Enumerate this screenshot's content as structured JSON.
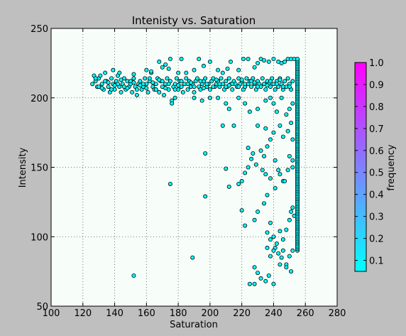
{
  "chart_data": {
    "type": "scatter",
    "title": "Intenisty vs. Saturation",
    "xlabel": "Saturation",
    "ylabel": "Intensity",
    "xlim": [
      100,
      280
    ],
    "ylim": [
      50,
      250
    ],
    "xticks": [
      "100",
      "120",
      "140",
      "160",
      "180",
      "200",
      "220",
      "240",
      "260",
      "280"
    ],
    "yticks": [
      "50",
      "100",
      "150",
      "200",
      "250"
    ],
    "grid": true,
    "marker_color": "#00ffff",
    "marker_edge": "#000000",
    "background": "#f7fdf9",
    "colorbar": {
      "label": "frequency",
      "ticks": [
        "0.1",
        "0.2",
        "0.3",
        "0.4",
        "0.5",
        "0.6",
        "0.7",
        "0.8",
        "0.9",
        "1.0"
      ],
      "range": [
        0.05,
        1.0
      ],
      "colors": [
        "#00ffff",
        "#ff00ff"
      ]
    },
    "points": [
      [
        126,
        210
      ],
      [
        127,
        216
      ],
      [
        128,
        212
      ],
      [
        129,
        208
      ],
      [
        130,
        214
      ],
      [
        131,
        216
      ],
      [
        132,
        210
      ],
      [
        133,
        206
      ],
      [
        134,
        218
      ],
      [
        135,
        212
      ],
      [
        136,
        208
      ],
      [
        137,
        204
      ],
      [
        138,
        214
      ],
      [
        139,
        210
      ],
      [
        140,
        206
      ],
      [
        141,
        212
      ],
      [
        142,
        216
      ],
      [
        143,
        208
      ],
      [
        144,
        204
      ],
      [
        145,
        210
      ],
      [
        146,
        214
      ],
      [
        147,
        206
      ],
      [
        148,
        212
      ],
      [
        149,
        208
      ],
      [
        150,
        210
      ],
      [
        151,
        204
      ],
      [
        152,
        214
      ],
      [
        153,
        208
      ],
      [
        154,
        202
      ],
      [
        155,
        210
      ],
      [
        156,
        212
      ],
      [
        157,
        206
      ],
      [
        158,
        208
      ],
      [
        159,
        214
      ],
      [
        160,
        210
      ],
      [
        161,
        204
      ],
      [
        162,
        212
      ],
      [
        163,
        218
      ],
      [
        164,
        208
      ],
      [
        165,
        206
      ],
      [
        166,
        210
      ],
      [
        167,
        214
      ],
      [
        168,
        204
      ],
      [
        169,
        212
      ],
      [
        170,
        208
      ],
      [
        171,
        202
      ],
      [
        172,
        210
      ],
      [
        173,
        214
      ],
      [
        174,
        206
      ],
      [
        175,
        212
      ],
      [
        176,
        198
      ],
      [
        177,
        208
      ],
      [
        178,
        210
      ],
      [
        179,
        214
      ],
      [
        180,
        206
      ],
      [
        181,
        212
      ],
      [
        182,
        208
      ],
      [
        183,
        204
      ],
      [
        184,
        210
      ],
      [
        185,
        214
      ],
      [
        186,
        206
      ],
      [
        187,
        212
      ],
      [
        188,
        208
      ],
      [
        189,
        210
      ],
      [
        190,
        204
      ],
      [
        191,
        212
      ],
      [
        192,
        214
      ],
      [
        193,
        208
      ],
      [
        194,
        206
      ],
      [
        195,
        210
      ],
      [
        196,
        212
      ],
      [
        197,
        214
      ],
      [
        198,
        208
      ],
      [
        199,
        210
      ],
      [
        200,
        206
      ],
      [
        201,
        212
      ],
      [
        202,
        214
      ],
      [
        203,
        208
      ],
      [
        204,
        210
      ],
      [
        205,
        212
      ],
      [
        206,
        208
      ],
      [
        207,
        214
      ],
      [
        208,
        210
      ],
      [
        209,
        206
      ],
      [
        210,
        212
      ],
      [
        211,
        208
      ],
      [
        212,
        214
      ],
      [
        213,
        210
      ],
      [
        214,
        206
      ],
      [
        215,
        212
      ],
      [
        216,
        210
      ],
      [
        217,
        208
      ],
      [
        218,
        214
      ],
      [
        219,
        210
      ],
      [
        220,
        212
      ],
      [
        221,
        206
      ],
      [
        222,
        208
      ],
      [
        223,
        214
      ],
      [
        224,
        210
      ],
      [
        225,
        212
      ],
      [
        226,
        208
      ],
      [
        227,
        214
      ],
      [
        228,
        210
      ],
      [
        229,
        206
      ],
      [
        230,
        212
      ],
      [
        231,
        210
      ],
      [
        232,
        208
      ],
      [
        233,
        214
      ],
      [
        234,
        210
      ],
      [
        235,
        206
      ],
      [
        236,
        212
      ],
      [
        237,
        210
      ],
      [
        238,
        208
      ],
      [
        239,
        214
      ],
      [
        240,
        210
      ],
      [
        241,
        206
      ],
      [
        242,
        212
      ],
      [
        243,
        208
      ],
      [
        244,
        214
      ],
      [
        245,
        210
      ],
      [
        246,
        206
      ],
      [
        247,
        212
      ],
      [
        248,
        208
      ],
      [
        249,
        214
      ],
      [
        250,
        210
      ],
      [
        251,
        206
      ],
      [
        252,
        212
      ],
      [
        130,
        208
      ],
      [
        134,
        212
      ],
      [
        138,
        206
      ],
      [
        142,
        210
      ],
      [
        146,
        208
      ],
      [
        150,
        212
      ],
      [
        154,
        206
      ],
      [
        158,
        210
      ],
      [
        162,
        214
      ],
      [
        166,
        206
      ],
      [
        170,
        212
      ],
      [
        174,
        210
      ],
      [
        178,
        206
      ],
      [
        182,
        212
      ],
      [
        186,
        210
      ],
      [
        190,
        208
      ],
      [
        194,
        212
      ],
      [
        198,
        210
      ],
      [
        202,
        208
      ],
      [
        206,
        210
      ],
      [
        210,
        208
      ],
      [
        214,
        210
      ],
      [
        218,
        208
      ],
      [
        222,
        210
      ],
      [
        226,
        212
      ],
      [
        230,
        208
      ],
      [
        234,
        210
      ],
      [
        238,
        212
      ],
      [
        242,
        210
      ],
      [
        246,
        208
      ],
      [
        128,
        214
      ],
      [
        132,
        207
      ],
      [
        136,
        211
      ],
      [
        140,
        209
      ],
      [
        144,
        213
      ],
      [
        148,
        207
      ],
      [
        152,
        211
      ],
      [
        156,
        209
      ],
      [
        160,
        207
      ],
      [
        164,
        211
      ],
      [
        168,
        213
      ],
      [
        172,
        207
      ],
      [
        180,
        209
      ],
      [
        188,
        211
      ],
      [
        196,
        207
      ],
      [
        204,
        213
      ],
      [
        212,
        209
      ],
      [
        220,
        213
      ],
      [
        228,
        211
      ],
      [
        236,
        209
      ],
      [
        244,
        213
      ],
      [
        250,
        208
      ],
      [
        139,
        220
      ],
      [
        143,
        218
      ],
      [
        152,
        217
      ],
      [
        160,
        220
      ],
      [
        163,
        219
      ],
      [
        168,
        226
      ],
      [
        170,
        222
      ],
      [
        172,
        224
      ],
      [
        174,
        221
      ],
      [
        175,
        228
      ],
      [
        180,
        218
      ],
      [
        182,
        228
      ],
      [
        185,
        218
      ],
      [
        190,
        220
      ],
      [
        193,
        228
      ],
      [
        196,
        223
      ],
      [
        200,
        226
      ],
      [
        205,
        220
      ],
      [
        208,
        218
      ],
      [
        211,
        221
      ],
      [
        213,
        226
      ],
      [
        218,
        220
      ],
      [
        221,
        228
      ],
      [
        224,
        228
      ],
      [
        228,
        222
      ],
      [
        230,
        225
      ],
      [
        232,
        228
      ],
      [
        234,
        227
      ],
      [
        237,
        226
      ],
      [
        240,
        228
      ],
      [
        243,
        226
      ],
      [
        245,
        225
      ],
      [
        247,
        226
      ],
      [
        249,
        228
      ],
      [
        251,
        228
      ],
      [
        253,
        228
      ],
      [
        176,
        196
      ],
      [
        178,
        200
      ],
      [
        190,
        200
      ],
      [
        195,
        198
      ],
      [
        200,
        200
      ],
      [
        205,
        200
      ],
      [
        210,
        196
      ],
      [
        212,
        192
      ],
      [
        218,
        200
      ],
      [
        222,
        196
      ],
      [
        225,
        190
      ],
      [
        230,
        192
      ],
      [
        235,
        198
      ],
      [
        238,
        200
      ],
      [
        240,
        196
      ],
      [
        242,
        190
      ],
      [
        245,
        200
      ],
      [
        248,
        188
      ],
      [
        250,
        192
      ],
      [
        252,
        196
      ],
      [
        208,
        180
      ],
      [
        230,
        180
      ],
      [
        235,
        178
      ],
      [
        238,
        170
      ],
      [
        240,
        175
      ],
      [
        244,
        180
      ],
      [
        246,
        172
      ],
      [
        249,
        176
      ],
      [
        251,
        182
      ],
      [
        252,
        170
      ],
      [
        197,
        160
      ],
      [
        215,
        180
      ],
      [
        224,
        164
      ],
      [
        227,
        160
      ],
      [
        232,
        162
      ],
      [
        234,
        158
      ],
      [
        236,
        165
      ],
      [
        241,
        155
      ],
      [
        243,
        148
      ],
      [
        246,
        140
      ],
      [
        250,
        158
      ],
      [
        252,
        150
      ],
      [
        175,
        138
      ],
      [
        197,
        129
      ],
      [
        210,
        149
      ],
      [
        212,
        136
      ],
      [
        218,
        138
      ],
      [
        220,
        140
      ],
      [
        222,
        146
      ],
      [
        224,
        150
      ],
      [
        226,
        156
      ],
      [
        229,
        152
      ],
      [
        233,
        148
      ],
      [
        235,
        145
      ],
      [
        238,
        142
      ],
      [
        241,
        135
      ],
      [
        244,
        145
      ],
      [
        247,
        140
      ],
      [
        249,
        148
      ],
      [
        252,
        155
      ],
      [
        220,
        119
      ],
      [
        222,
        108
      ],
      [
        228,
        112
      ],
      [
        230,
        118
      ],
      [
        234,
        124
      ],
      [
        236,
        130
      ],
      [
        238,
        110
      ],
      [
        240,
        100
      ],
      [
        242,
        95
      ],
      [
        244,
        104
      ],
      [
        246,
        98
      ],
      [
        248,
        105
      ],
      [
        250,
        112
      ],
      [
        251,
        118
      ],
      [
        252,
        121
      ],
      [
        253,
        115
      ],
      [
        236,
        103
      ],
      [
        238,
        98
      ],
      [
        241,
        92
      ],
      [
        243,
        88
      ],
      [
        245,
        85
      ],
      [
        246,
        90
      ],
      [
        248,
        80
      ],
      [
        250,
        86
      ],
      [
        251,
        75
      ],
      [
        252,
        90
      ],
      [
        228,
        78
      ],
      [
        230,
        74
      ],
      [
        232,
        70
      ],
      [
        235,
        68
      ],
      [
        237,
        72
      ],
      [
        240,
        66
      ],
      [
        244,
        80
      ],
      [
        248,
        78
      ],
      [
        225,
        66
      ],
      [
        228,
        66
      ],
      [
        189,
        85
      ],
      [
        152,
        72
      ],
      [
        236,
        92
      ],
      [
        238,
        86
      ],
      [
        240,
        90
      ]
    ]
  }
}
